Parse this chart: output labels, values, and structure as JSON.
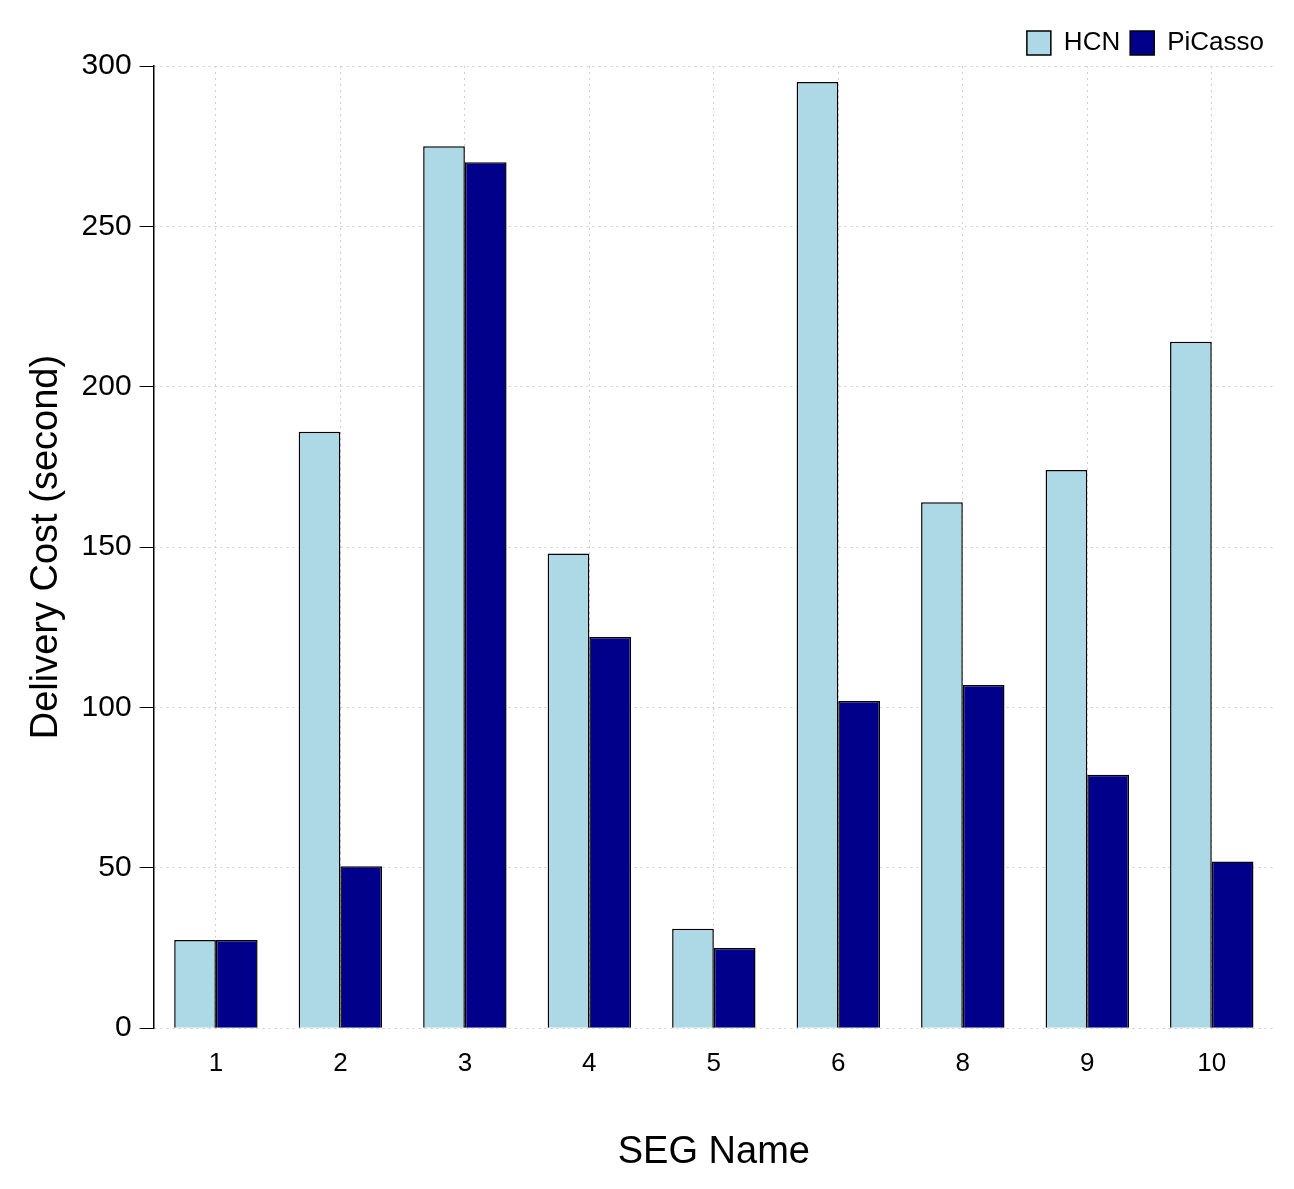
{
  "chart_data": {
    "type": "bar",
    "xlabel": "SEG Name",
    "ylabel": "Delivery Cost (second)",
    "categories": [
      "1",
      "2",
      "3",
      "4",
      "5",
      "6",
      "8",
      "9",
      "10"
    ],
    "series": [
      {
        "name": "HCN",
        "color": "#add8e6",
        "values": [
          27.5,
          186,
          275,
          148,
          31,
          295,
          164,
          174,
          214
        ]
      },
      {
        "name": "PiCasso",
        "color": "#00008b",
        "values": [
          27.5,
          50.5,
          270,
          122,
          25,
          102,
          107,
          79,
          52
        ]
      }
    ],
    "ylim": [
      0,
      300
    ],
    "yticks": [
      0,
      50,
      100,
      150,
      200,
      250,
      300
    ],
    "grid": true,
    "legend": "top right"
  }
}
